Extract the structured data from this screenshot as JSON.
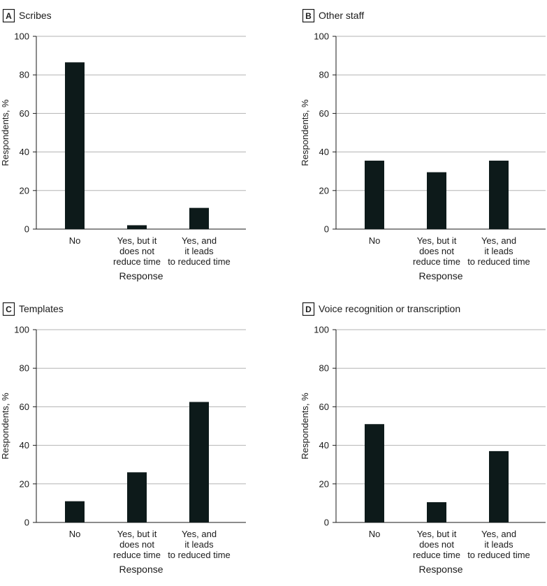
{
  "colors": {
    "bar": "#0d1a1a",
    "grid": "#b3b3b3",
    "axis": "#1a1a1a",
    "text": "#1a1a1a"
  },
  "chart_data": [
    {
      "type": "bar",
      "panel": "A",
      "title": "Scribes",
      "categories": [
        [
          "No"
        ],
        [
          "Yes, but it",
          "does not",
          "reduce time"
        ],
        [
          "Yes, and",
          "it leads",
          "to reduced time"
        ]
      ],
      "values": [
        86.5,
        2,
        11
      ],
      "xlabel": "Response",
      "ylabel": "Respondents, %",
      "ylim": [
        0,
        100
      ],
      "yticks": [
        0,
        20,
        40,
        60,
        80,
        100
      ],
      "grid": true
    },
    {
      "type": "bar",
      "panel": "B",
      "title": "Other staff",
      "categories": [
        [
          "No"
        ],
        [
          "Yes, but it",
          "does not",
          "reduce time"
        ],
        [
          "Yes, and",
          "it leads",
          "to reduced time"
        ]
      ],
      "values": [
        35.5,
        29.5,
        35.5
      ],
      "xlabel": "Response",
      "ylabel": "Respondents, %",
      "ylim": [
        0,
        100
      ],
      "yticks": [
        0,
        20,
        40,
        60,
        80,
        100
      ],
      "grid": true
    },
    {
      "type": "bar",
      "panel": "C",
      "title": "Templates",
      "categories": [
        [
          "No"
        ],
        [
          "Yes, but it",
          "does not",
          "reduce time"
        ],
        [
          "Yes, and",
          "it leads",
          "to reduced time"
        ]
      ],
      "values": [
        11,
        26,
        62.5
      ],
      "xlabel": "Response",
      "ylabel": "Respondents, %",
      "ylim": [
        0,
        100
      ],
      "yticks": [
        0,
        20,
        40,
        60,
        80,
        100
      ],
      "grid": true
    },
    {
      "type": "bar",
      "panel": "D",
      "title": "Voice recognition or transcription",
      "categories": [
        [
          "No"
        ],
        [
          "Yes, but it",
          "does not",
          "reduce time"
        ],
        [
          "Yes, and",
          "it leads",
          "to reduced time"
        ]
      ],
      "values": [
        51,
        10.5,
        37
      ],
      "xlabel": "Response",
      "ylabel": "Respondents, %",
      "ylim": [
        0,
        100
      ],
      "yticks": [
        0,
        20,
        40,
        60,
        80,
        100
      ],
      "grid": true
    }
  ]
}
